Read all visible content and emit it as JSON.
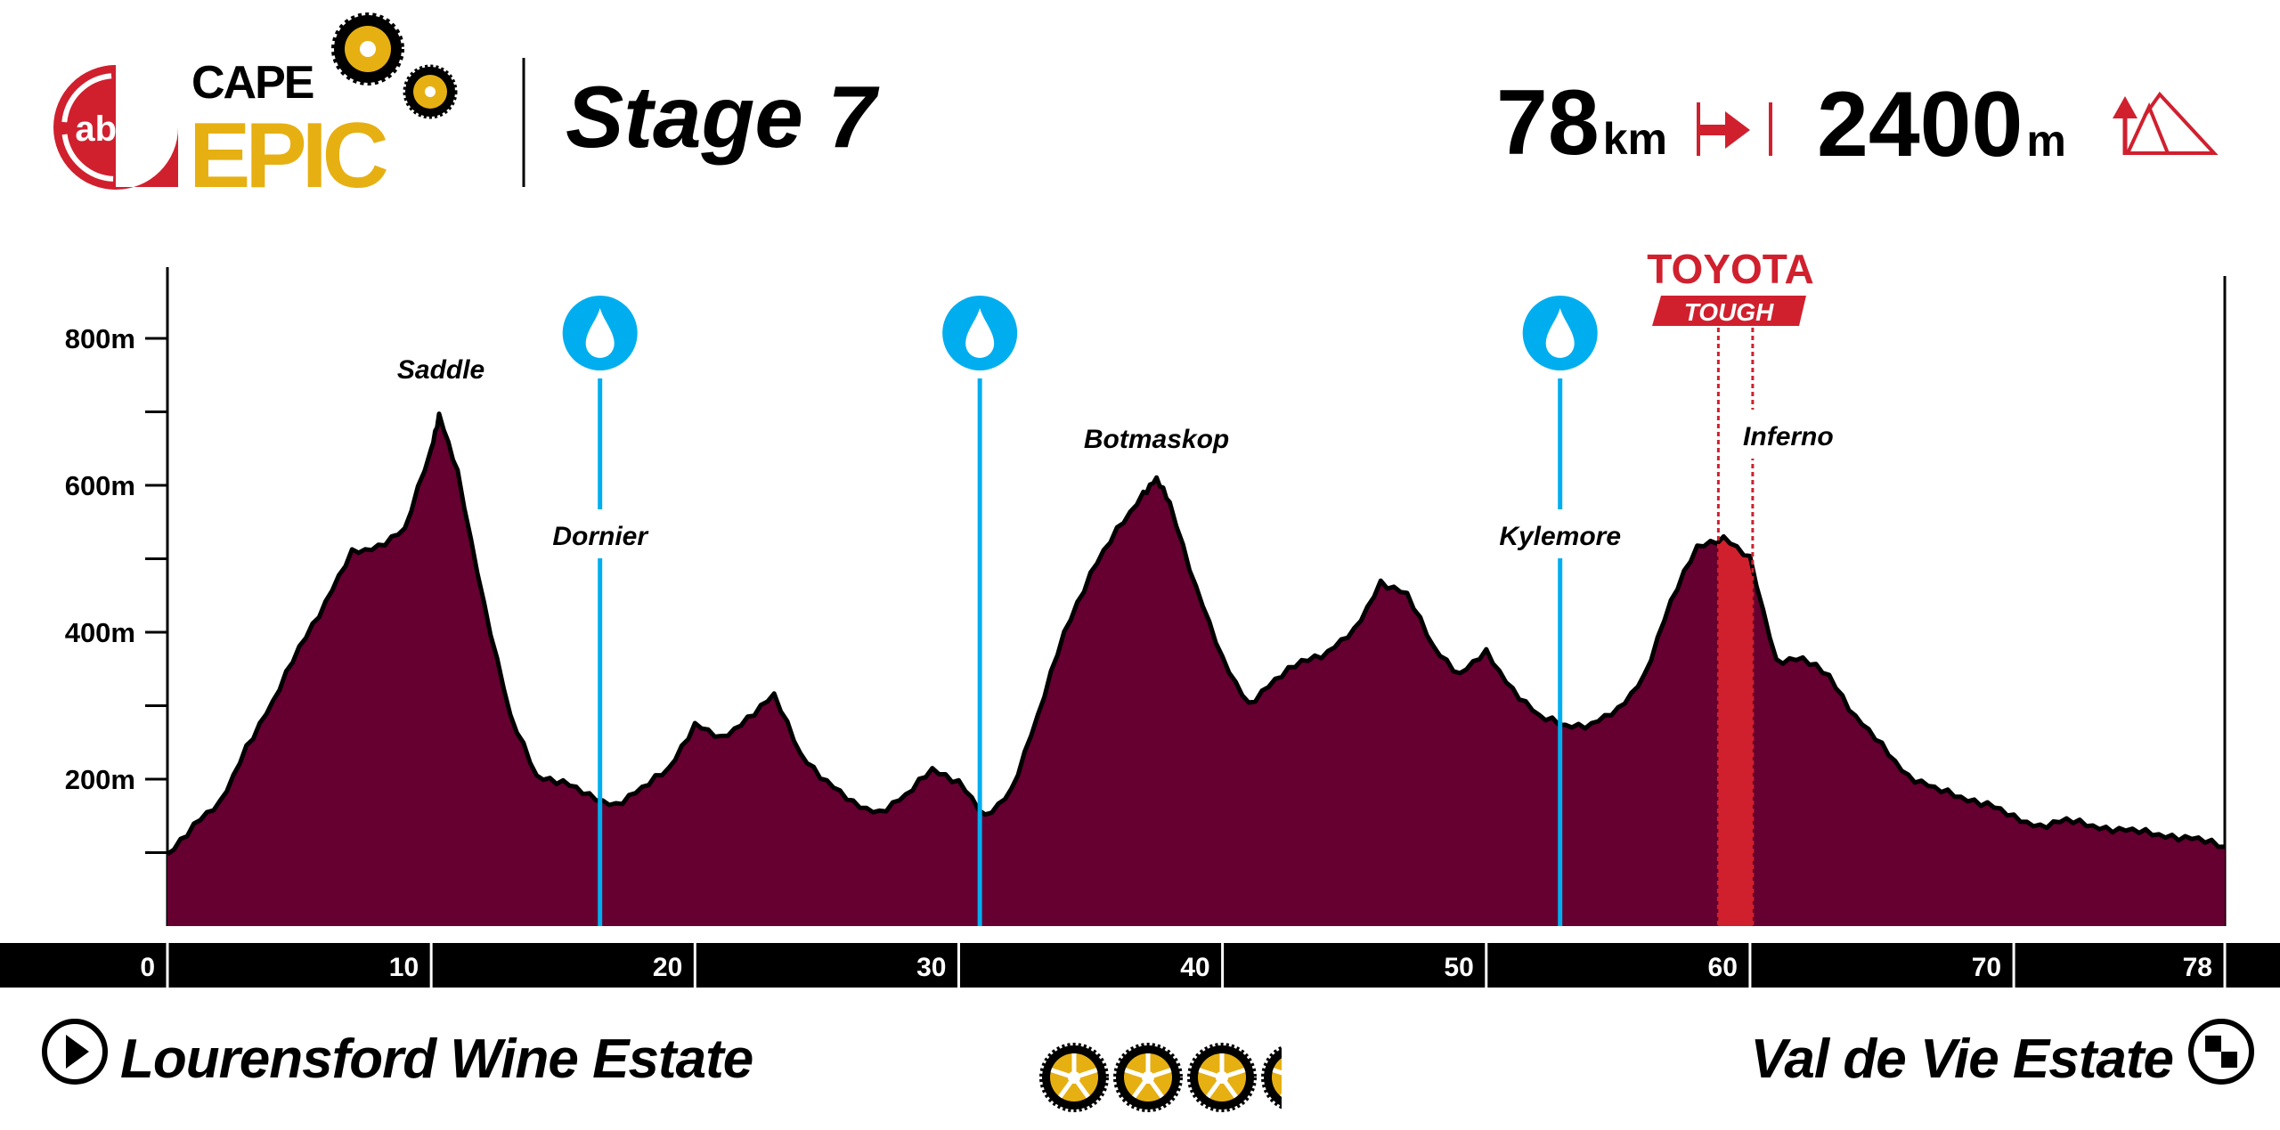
{
  "header": {
    "logo_sponsor": "absa",
    "logo_cape": "CAPE",
    "logo_epic": "EPIC",
    "title": "Stage 7",
    "distance_value": "78",
    "distance_unit": "km",
    "distance_icon": "distance-arrow-icon",
    "climb_value": "2400",
    "climb_unit": "m",
    "climb_icon": "elevation-mountain-icon"
  },
  "footer": {
    "start_label": "Lourensford Wine Estate",
    "start_icon": "play-circle-icon",
    "finish_label": "Val de Vie Estate",
    "finish_icon": "checkered-flag-circle-icon",
    "difficulty_icon": "chainring-icon",
    "difficulty_rating": 3.5,
    "difficulty_max": 4
  },
  "colors": {
    "profile_fill": "#650030",
    "water": "#00aeef",
    "sponsor_red": "#d0202e",
    "gold": "#e6b012",
    "axis_bar": "#000000"
  },
  "chart_data": {
    "type": "area",
    "xlabel": "",
    "ylabel": "",
    "xlim": [
      0,
      78
    ],
    "ylim": [
      0,
      800
    ],
    "x_ticks": [
      "0",
      "10",
      "20",
      "30",
      "40",
      "50",
      "60",
      "70",
      "78"
    ],
    "x_tick_values": [
      0,
      10,
      20,
      30,
      40,
      50,
      60,
      70,
      78
    ],
    "y_ticks": [
      "200m",
      "400m",
      "600m",
      "800m"
    ],
    "y_tick_values": [
      200,
      400,
      600,
      800
    ],
    "y_minor_step": 100,
    "grid": false,
    "x": [
      0,
      1,
      2,
      3,
      4,
      5,
      6,
      7,
      8,
      9,
      10,
      10.3,
      11,
      12,
      13,
      14,
      15,
      16,
      17,
      18,
      19,
      20,
      21,
      22,
      23,
      24,
      25,
      26,
      27,
      28,
      29,
      30,
      31,
      32,
      33,
      34,
      35,
      36,
      37,
      37.5,
      38,
      39,
      40,
      41,
      42,
      43,
      44,
      45,
      46,
      47,
      48,
      49,
      50,
      51,
      52,
      53,
      54,
      55,
      56,
      57,
      58,
      59,
      60,
      61,
      62,
      63,
      64,
      65,
      66,
      67,
      68,
      69,
      70,
      71,
      72,
      73,
      74,
      75,
      76,
      77,
      78
    ],
    "elevation": [
      98,
      137,
      166,
      245,
      303,
      381,
      440,
      508,
      518,
      538,
      650,
      695,
      616,
      440,
      284,
      205,
      196,
      176,
      166,
      186,
      215,
      274,
      254,
      284,
      313,
      235,
      196,
      166,
      156,
      176,
      215,
      196,
      147,
      186,
      284,
      401,
      479,
      538,
      590,
      607,
      577,
      460,
      362,
      303,
      333,
      362,
      372,
      401,
      469,
      450,
      381,
      342,
      372,
      323,
      284,
      274,
      274,
      293,
      342,
      440,
      518,
      528,
      499,
      362,
      362,
      342,
      284,
      245,
      205,
      186,
      176,
      166,
      147,
      137,
      143,
      137,
      131,
      127,
      123,
      117,
      108
    ],
    "water_points_km": [
      16.4,
      30.8,
      52.8
    ],
    "segment": {
      "name": "TOYOTA TOUGH",
      "start_km": 58.8,
      "end_km": 60.1,
      "label": "Inferno"
    },
    "annotations": [
      {
        "text": "Saddle",
        "km": 10.2,
        "elevation": 695
      },
      {
        "text": "Dornier",
        "km": 16.4
      },
      {
        "text": "Botmaskop",
        "km": 37.5,
        "elevation": 607
      },
      {
        "text": "Kylemore",
        "km": 52.8
      },
      {
        "text": "Inferno",
        "km": 60.1
      }
    ],
    "sponsor_logo_top": "TOYOTA",
    "sponsor_logo_bottom": "TOUGH"
  }
}
